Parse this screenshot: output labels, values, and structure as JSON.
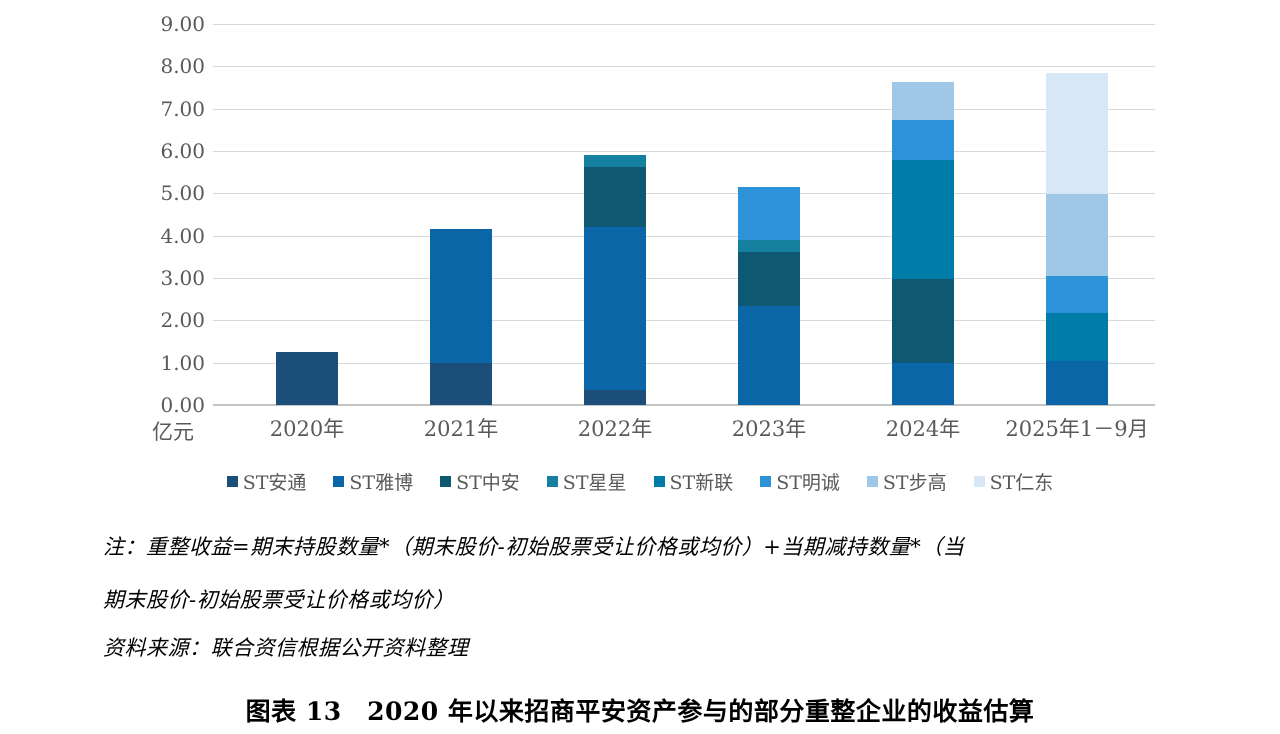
{
  "chart_data": {
    "type": "bar",
    "stacked": true,
    "title": "",
    "ylabel_unit": "亿元",
    "ylim": [
      0,
      9
    ],
    "ytick_step": 1,
    "yticks": [
      "0.00",
      "1.00",
      "2.00",
      "3.00",
      "4.00",
      "5.00",
      "6.00",
      "7.00",
      "8.00",
      "9.00"
    ],
    "categories": [
      "2020年",
      "2021年",
      "2022年",
      "2023年",
      "2024年",
      "2025年1－9月"
    ],
    "series": [
      {
        "name": "ST安通",
        "color": "#1B4E79",
        "values": [
          1.25,
          1.0,
          0.35,
          0,
          0,
          0
        ]
      },
      {
        "name": "ST雅博",
        "color": "#0A66A7",
        "values": [
          0,
          3.15,
          3.85,
          2.35,
          1.0,
          1.03
        ]
      },
      {
        "name": "ST中安",
        "color": "#0E5871",
        "values": [
          0,
          0,
          1.42,
          1.26,
          1.98,
          0
        ]
      },
      {
        "name": "ST星星",
        "color": "#15809F",
        "values": [
          0,
          0,
          0.28,
          0.28,
          0,
          0
        ]
      },
      {
        "name": "ST新联",
        "color": "#007CA8",
        "values": [
          0,
          0,
          0,
          0,
          2.81,
          1.14
        ]
      },
      {
        "name": "ST明诚",
        "color": "#2E92D8",
        "values": [
          0,
          0,
          0,
          1.26,
          0.95,
          0.87
        ]
      },
      {
        "name": "ST步高",
        "color": "#9EC7E8",
        "values": [
          0,
          0,
          0,
          0,
          0.89,
          1.95
        ]
      },
      {
        "name": "ST仁东",
        "color": "#D8E7F5",
        "values": [
          0,
          0,
          0,
          0,
          0,
          2.86
        ]
      }
    ],
    "totals": [
      1.25,
      4.15,
      5.9,
      5.15,
      7.63,
      7.85
    ],
    "legend_position": "bottom",
    "grid": true
  },
  "notes": {
    "line1": "注：重整收益=期末持股数量*（期末股价-初始股票受让价格或均价）+当期减持数量*（当",
    "line2": "期末股价-初始股票受让价格或均价）",
    "source": "资料来源：联合资信根据公开资料整理"
  },
  "figure_title": "图表 13　2020 年以来招商平安资产参与的部分重整企业的收益估算"
}
